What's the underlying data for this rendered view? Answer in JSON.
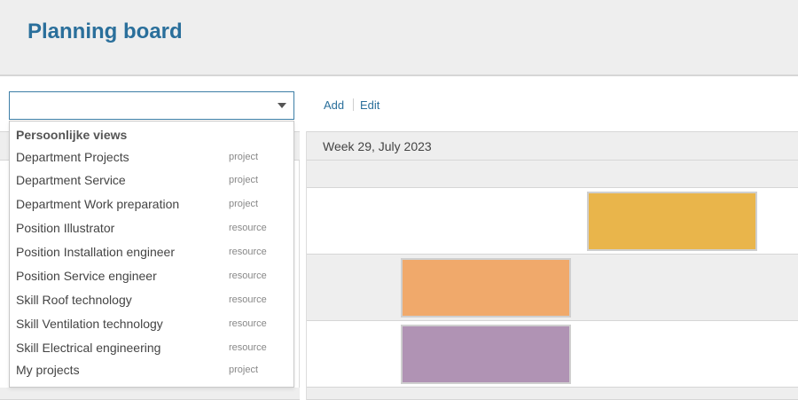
{
  "header": {
    "title": "Planning board"
  },
  "toolbar": {
    "view_select_value": "",
    "add_label": "Add",
    "edit_label": "Edit"
  },
  "board": {
    "week_label": "Week 29, July 2023",
    "blocks": [
      {
        "color": "#e9b54b"
      },
      {
        "color": "#f0a96b"
      },
      {
        "color": "#b093b4"
      }
    ]
  },
  "dropdown": {
    "group_heading": "Persoonlijke views",
    "options": [
      {
        "name": "Department Projects",
        "type": "project"
      },
      {
        "name": "Department Service",
        "type": "project"
      },
      {
        "name": "Department Work preparation",
        "type": "project"
      },
      {
        "name": "Position Illustrator",
        "type": "resource"
      },
      {
        "name": "Position Installation engineer",
        "type": "resource"
      },
      {
        "name": "Position Service engineer",
        "type": "resource"
      },
      {
        "name": "Skill Roof technology",
        "type": "resource"
      },
      {
        "name": "Skill Ventilation technology",
        "type": "resource"
      },
      {
        "name": "Skill Electrical engineering",
        "type": "resource"
      },
      {
        "name": "My projects",
        "type": "project"
      }
    ]
  }
}
